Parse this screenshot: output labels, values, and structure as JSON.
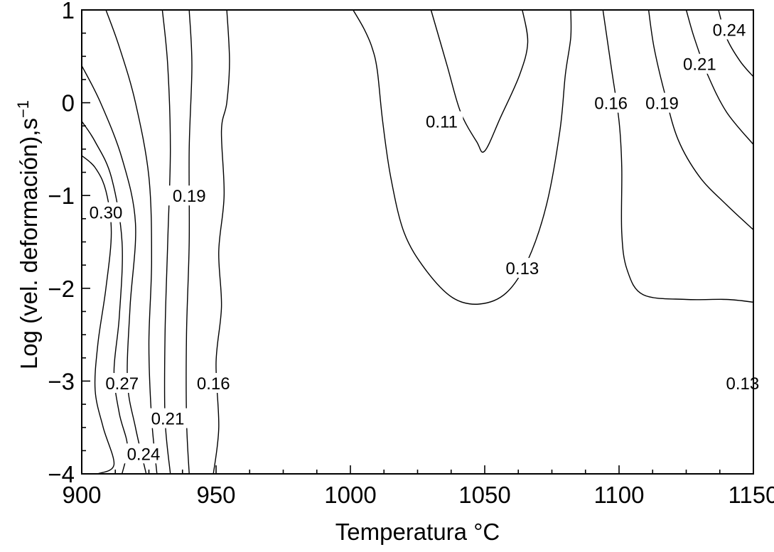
{
  "chart_data": {
    "type": "contour",
    "xlabel": "Temperatura °C",
    "ylabel": "Log (vel. deformación),s",
    "ylabel_superscript": "−1",
    "xlim": [
      900,
      1150
    ],
    "ylim": [
      -4,
      1
    ],
    "x_ticks": [
      900,
      950,
      1000,
      1050,
      1100,
      1150
    ],
    "x_tick_labels": [
      "900",
      "950",
      "1000",
      "1050",
      "1100",
      "1150"
    ],
    "y_ticks": [
      1,
      0,
      -1,
      -2,
      -3,
      -4
    ],
    "y_tick_labels": [
      "1",
      "0",
      "−1",
      "−2",
      "−3",
      "−4"
    ],
    "line_color": "#000000",
    "contours": [
      {
        "level": "0.30",
        "label": {
          "x": 909,
          "y": -1.18
        },
        "points": [
          [
            900,
            -0.57
          ],
          [
            905,
            -0.7
          ],
          [
            909,
            -0.95
          ],
          [
            911,
            -1.4
          ],
          [
            909,
            -2.0
          ],
          [
            906,
            -2.6
          ],
          [
            905,
            -3.1
          ],
          [
            908,
            -3.5
          ],
          [
            912,
            -3.9
          ],
          [
            906,
            -4.0
          ]
        ]
      },
      {
        "level": "0.27",
        "label": {
          "x": 915,
          "y": -3.02
        },
        "points": [
          [
            900,
            -0.2
          ],
          [
            905,
            -0.42
          ],
          [
            911,
            -0.8
          ],
          [
            915,
            -1.5
          ],
          [
            914,
            -2.3
          ],
          [
            912,
            -2.9
          ],
          [
            914,
            -3.35
          ],
          [
            917,
            -3.7
          ],
          [
            915,
            -4.0
          ]
        ]
      },
      {
        "level": "",
        "label": null,
        "points": [
          [
            900,
            0.4
          ],
          [
            907,
            0.0
          ],
          [
            915,
            -0.6
          ],
          [
            920,
            -1.3
          ],
          [
            918,
            -2.2
          ],
          [
            917,
            -3.0
          ],
          [
            920,
            -3.5
          ],
          [
            924,
            -4.0
          ]
        ]
      },
      {
        "level": "0.24",
        "label": {
          "x": 923,
          "y": -3.78
        },
        "points": [
          [
            909,
            1.0
          ],
          [
            914,
            0.6
          ],
          [
            920,
            0.0
          ],
          [
            925,
            -0.8
          ],
          [
            926,
            -1.7
          ],
          [
            925,
            -2.6
          ],
          [
            926,
            -3.4
          ],
          [
            928,
            -4.0
          ]
        ]
      },
      {
        "level": "0.21",
        "label": {
          "x": 932,
          "y": -3.4
        },
        "points": [
          [
            930,
            1.0
          ],
          [
            932,
            0.4
          ],
          [
            933,
            -0.5
          ],
          [
            932,
            -1.5
          ],
          [
            931,
            -2.5
          ],
          [
            931,
            -3.4
          ],
          [
            933,
            -4.0
          ]
        ]
      },
      {
        "level": "0.19",
        "label": {
          "x": 940,
          "y": -1.0
        },
        "points": [
          [
            940,
            1.0
          ],
          [
            941,
            0.4
          ],
          [
            940,
            -0.5
          ],
          [
            940,
            -1.5
          ],
          [
            939,
            -2.5
          ],
          [
            939,
            -3.4
          ],
          [
            940,
            -4.0
          ]
        ]
      },
      {
        "level": "0.16",
        "label": {
          "x": 949,
          "y": -3.02
        },
        "points": [
          [
            954,
            1.0
          ],
          [
            955,
            0.45
          ],
          [
            954,
            0.0
          ],
          [
            952,
            -0.3
          ],
          [
            953,
            -1.0
          ],
          [
            951,
            -1.6
          ],
          [
            952,
            -2.2
          ],
          [
            950,
            -2.8
          ],
          [
            951,
            -3.5
          ],
          [
            949,
            -4.0
          ]
        ]
      },
      {
        "level": "0.11",
        "label": {
          "x": 1034,
          "y": -0.2
        },
        "points": [
          [
            1030,
            1.0
          ],
          [
            1036,
            0.4
          ],
          [
            1041,
            -0.1
          ],
          [
            1047,
            -0.42
          ],
          [
            1050,
            -0.52
          ],
          [
            1056,
            -0.15
          ],
          [
            1063,
            0.3
          ],
          [
            1066,
            0.65
          ],
          [
            1064,
            1.0
          ]
        ]
      },
      {
        "level": "0.13",
        "label": {
          "x": 1064,
          "y": -1.78
        },
        "points": [
          [
            1001,
            1.0
          ],
          [
            1005,
            0.8
          ],
          [
            1008,
            0.6
          ],
          [
            1010,
            0.35
          ],
          [
            1012,
            -0.2
          ],
          [
            1015,
            -0.8
          ],
          [
            1020,
            -1.4
          ],
          [
            1028,
            -1.8
          ],
          [
            1038,
            -2.1
          ],
          [
            1048,
            -2.17
          ],
          [
            1058,
            -2.05
          ],
          [
            1066,
            -1.7
          ],
          [
            1073,
            -1.1
          ],
          [
            1078,
            -0.3
          ],
          [
            1080,
            0.3
          ],
          [
            1082,
            0.7
          ],
          [
            1082,
            1.0
          ]
        ]
      },
      {
        "level": "0.16",
        "label": {
          "x": 1097,
          "y": 0.0
        },
        "points": [
          [
            1094,
            1.0
          ],
          [
            1097,
            0.4
          ],
          [
            1100,
            -0.2
          ],
          [
            1101,
            -0.7
          ],
          [
            1101,
            -1.4
          ],
          [
            1103,
            -1.8
          ],
          [
            1109,
            -2.07
          ],
          [
            1125,
            -2.12
          ],
          [
            1140,
            -2.12
          ],
          [
            1150,
            -2.15
          ]
        ]
      },
      {
        "level": "0.19",
        "label": {
          "x": 1116,
          "y": 0.0
        },
        "points": [
          [
            1111,
            1.0
          ],
          [
            1113,
            0.6
          ],
          [
            1117,
            0.1
          ],
          [
            1122,
            -0.4
          ],
          [
            1130,
            -0.8
          ],
          [
            1140,
            -1.1
          ],
          [
            1150,
            -1.37
          ]
        ]
      },
      {
        "level": "0.21",
        "label": {
          "x": 1130,
          "y": 0.42
        },
        "points": [
          [
            1125,
            1.0
          ],
          [
            1128,
            0.7
          ],
          [
            1133,
            0.3
          ],
          [
            1140,
            -0.1
          ],
          [
            1150,
            -0.45
          ]
        ]
      },
      {
        "level": "0.24",
        "label": {
          "x": 1141,
          "y": 0.79
        },
        "points": [
          [
            1137,
            1.0
          ],
          [
            1140,
            0.7
          ],
          [
            1145,
            0.45
          ],
          [
            1150,
            0.28
          ]
        ]
      }
    ],
    "extra_labels": [
      {
        "text": "0.13",
        "x": 1146,
        "y": -3.02
      }
    ]
  }
}
